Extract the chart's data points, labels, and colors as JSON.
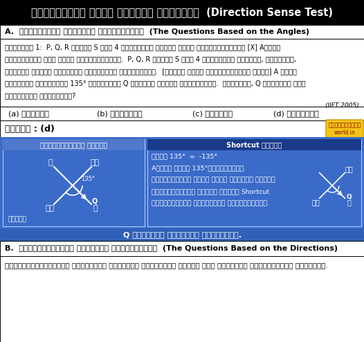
{
  "title": "ದಿಶಾಗ್ರಹಣ ಅಥವಾ ದಿಕ್ಕು ಪರೀಕ್ಷೆ  (Direction Sense Test)",
  "section_a": "A.  ಕೋಣಗಳನ್ನು ಆಧರಿಸಿದ ಪ್ರಶ್ನೆಗಳು  (The Questions Based on the Angles)",
  "q_line1": "ಉದಾಹರಣೆ 1:  P, Q, R ಮತ್ತು S ಎಂಬ 4 ರಸ್ತೆಗಳು ಸೇರುವ ಒಂದು ಕ್ಯಾಸ್ಸನಲ್ಲಿ [X] Aರವರು",
  "q_line2": "ಪೂರ್ವಕ್ಕೆ ಮುಖ ಮಾಡಿ ನಿಂತಿದ್ದಾರೆ.  P, Q, R ಮತ್ತು S ಎಂಬ 4 ರಸ್ತೆಗಳು ಈಶಾನ್ಯ, ವಾಯುವ್ಯ,",
  "q_line3": "ಆಗ್ನೇಯ ಮತ್ತು ನೈರುತ್ಯ ದಿಕ್ಕಿಗೆ ಮುಖಮಾಡಿವೆ.  [ಹೆಸರು ಬರೆದ ಕ್ರಮದಲ್ಲಿಯೇ ಅಲ್ಲ] A ರವರು",
  "q_line4": "ಗಡಿಯಾರದ ದಿಕ್ಕಿಗೆ 135° ತಿರುಗಡಾಗ Q ರಸ್ತೆಯ ಕಡೆಗೆ ತಿರುಗುವರು.  ಹಾಗಾದರೆ, Q ರಸ್ತೆಯು ಯಾವ",
  "q_line5": "ದಿಕ್ಕಿಗೆ ಹೋಗುವುದು?",
  "iift_ref": "(IIFT 2005)",
  "opt_a": "(a) ಈಶಾನ್ಯ",
  "opt_b": "(b) ವಾಯುವ್ಯ",
  "opt_c": "(c) ಆಗ್ನೇಯ",
  "opt_d": "(d) ನೈರುತ್ಯ",
  "answer_label": "ಉತ್ತರ : (d)",
  "stamp_line1": "ವಿದ್ಯಾರ್ಥಿ",
  "stamp_line2": "world.in",
  "traditional_header": "ಸಾಂಪ್ರದಾಯಿಕ ವಿಧಾನ",
  "shortcut_header": "Shortcut ವಿಧಾನ",
  "sc_line1": "ಎಡಕೆ 135°  =  -135°",
  "sc_line2": "Aರವರು ಎಡಕೆ 135°ತಿರುಗುವರು.",
  "sc_line3": "ಪ್ರಶ್ನಕ್ಕೆ ಒಂದೇ ತರಹದ ಮಾಹಿತಿ ಕೊಟಾಗ",
  "sc_line4": "ಸಾಂಪ್ರದಾಯಿಕ ವಿಧಾನ ಮತ್ತು Shortcut",
  "sc_line5": "ವಿಧಾನಗಳಿಗೆ ವ್ಯತ್ಯಾಸ ಇರುವುದಿಲ್ಲ.",
  "bottom_label": "Q ರಸ್ತೆಯು ನೈರುತ್ಯ ಹೋಗುವುದು.",
  "section_b": "B.  ದಿಕ್ಕುಗಳನ್ನು ಆಧರಿಸಿದ ಪ್ರಶ್ನೆಗಳು  (The Questions Based on the Directions)",
  "section_b_text": "ಪ್ರಶ್ನೆಯಲ್ಲಿರುವ ಪಾತ್ರಗಳು ವಿಭಿನ್ನ ದಿಕ್ಕುಗಳ ಎಡೆಗೆ ಮುಖ ಮಾಡಿರುವ ಪ್ರಶ್ನೆಗಳು ಇವಾಗಿವೆ.",
  "trad_lbl_ne": "ಈ",
  "trad_lbl_nw": "ವಾ",
  "trad_lbl_sw": "ಆ",
  "trad_lbl_se": "ನೈ",
  "trad_lbl_q": "Q",
  "trad_lbl_pashchi": "ಪಶ್ಚಿ",
  "sc_lbl_p": "ಪ",
  "sc_lbl_nw": "ವಾ",
  "sc_lbl_se": "ನೈ",
  "sc_lbl_q": "Q",
  "bg_title": "#000000",
  "bg_diagram": "#3b6bc8",
  "bg_shortcut_hdr": "#1a3a8a",
  "color_stamp_bg": "#f5c518",
  "color_stamp_txt": "#8B0000",
  "color_bottom_bar": "#3060b8"
}
